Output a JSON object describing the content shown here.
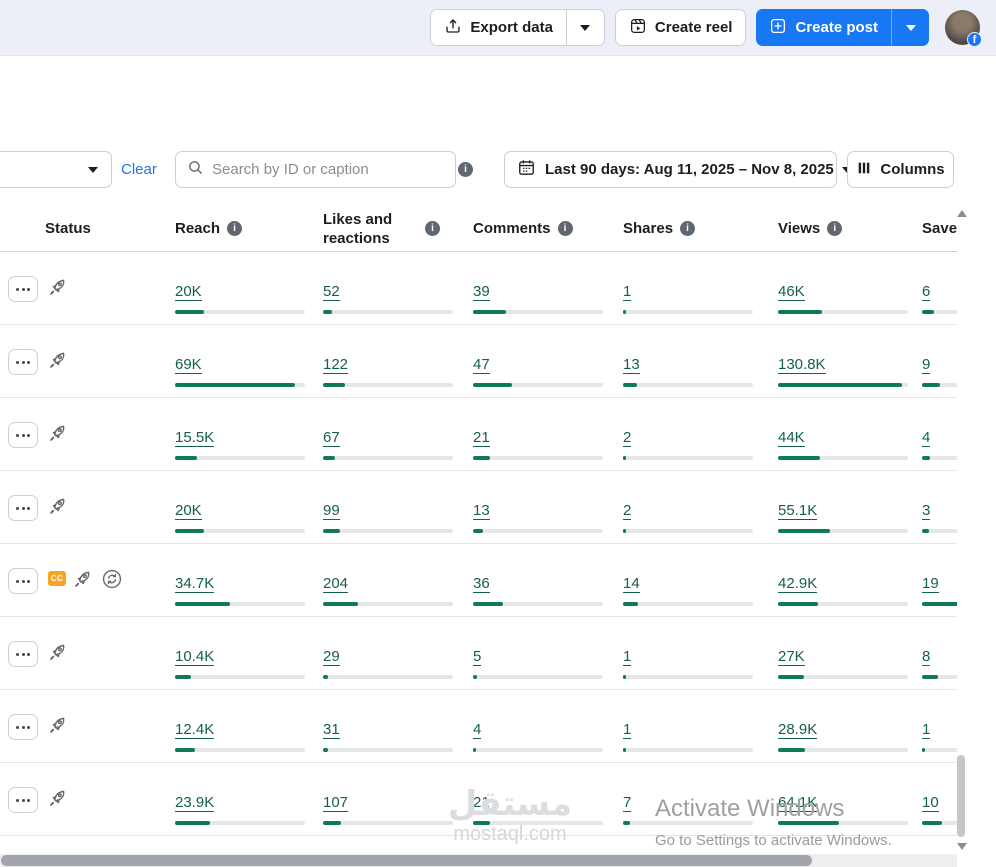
{
  "topbar": {
    "export": {
      "label": "Export data"
    },
    "create_reel": {
      "label": "Create reel"
    },
    "create_post": {
      "label": "Create post"
    }
  },
  "filters": {
    "clear": "Clear",
    "search_placeholder": "Search by ID or caption",
    "date_range": "Last 90 days: Aug 11, 2025 – Nov 8, 2025",
    "columns": "Columns"
  },
  "badges": {
    "cc": "CC"
  },
  "table": {
    "columns": [
      {
        "label": "Status",
        "info": false
      },
      {
        "label": "Reach",
        "info": true
      },
      {
        "label": "Likes and reactions",
        "info": true
      },
      {
        "label": "Comments",
        "info": true
      },
      {
        "label": "Shares",
        "info": true
      },
      {
        "label": "Views",
        "info": true
      },
      {
        "label": "Saves",
        "info": true
      }
    ],
    "rows": [
      {
        "status_icons": [
          "boost"
        ],
        "metrics": [
          {
            "value": "20K",
            "bar": 0.22
          },
          {
            "value": "52",
            "bar": 0.07
          },
          {
            "value": "39",
            "bar": 0.25
          },
          {
            "value": "1",
            "bar": 0.012
          },
          {
            "value": "46K",
            "bar": 0.34
          },
          {
            "value": "6",
            "bar": 0.09
          }
        ]
      },
      {
        "status_icons": [
          "boost"
        ],
        "metrics": [
          {
            "value": "69K",
            "bar": 0.92
          },
          {
            "value": "122",
            "bar": 0.17
          },
          {
            "value": "47",
            "bar": 0.3
          },
          {
            "value": "13",
            "bar": 0.11
          },
          {
            "value": "130.8K",
            "bar": 0.95
          },
          {
            "value": "9",
            "bar": 0.14
          }
        ]
      },
      {
        "status_icons": [
          "boost"
        ],
        "metrics": [
          {
            "value": "15.5K",
            "bar": 0.17
          },
          {
            "value": "67",
            "bar": 0.09
          },
          {
            "value": "21",
            "bar": 0.13
          },
          {
            "value": "2",
            "bar": 0.016
          },
          {
            "value": "44K",
            "bar": 0.32
          },
          {
            "value": "4",
            "bar": 0.06
          }
        ]
      },
      {
        "status_icons": [
          "boost"
        ],
        "metrics": [
          {
            "value": "20K",
            "bar": 0.22
          },
          {
            "value": "99",
            "bar": 0.13
          },
          {
            "value": "13",
            "bar": 0.08
          },
          {
            "value": "2",
            "bar": 0.016
          },
          {
            "value": "55.1K",
            "bar": 0.4
          },
          {
            "value": "3",
            "bar": 0.05
          }
        ]
      },
      {
        "status_icons": [
          "cc",
          "boost",
          "recycle"
        ],
        "metrics": [
          {
            "value": "34.7K",
            "bar": 0.42
          },
          {
            "value": "204",
            "bar": 0.27
          },
          {
            "value": "36",
            "bar": 0.23
          },
          {
            "value": "14",
            "bar": 0.115
          },
          {
            "value": "42.9K",
            "bar": 0.31
          },
          {
            "value": "19",
            "bar": 0.29
          }
        ]
      },
      {
        "status_icons": [
          "boost"
        ],
        "metrics": [
          {
            "value": "10.4K",
            "bar": 0.12
          },
          {
            "value": "29",
            "bar": 0.04
          },
          {
            "value": "5",
            "bar": 0.03
          },
          {
            "value": "1",
            "bar": 0.012
          },
          {
            "value": "27K",
            "bar": 0.2
          },
          {
            "value": "8",
            "bar": 0.12
          }
        ]
      },
      {
        "status_icons": [
          "boost"
        ],
        "metrics": [
          {
            "value": "12.4K",
            "bar": 0.15
          },
          {
            "value": "31",
            "bar": 0.04
          },
          {
            "value": "4",
            "bar": 0.025
          },
          {
            "value": "1",
            "bar": 0.012
          },
          {
            "value": "28.9K",
            "bar": 0.21
          },
          {
            "value": "1",
            "bar": 0.015
          }
        ]
      },
      {
        "status_icons": [
          "boost"
        ],
        "metrics": [
          {
            "value": "23.9K",
            "bar": 0.27
          },
          {
            "value": "107",
            "bar": 0.14
          },
          {
            "value": "21",
            "bar": 0.13
          },
          {
            "value": "7",
            "bar": 0.055
          },
          {
            "value": "64.1K",
            "bar": 0.47
          },
          {
            "value": "10",
            "bar": 0.15
          }
        ]
      }
    ]
  },
  "watermark": {
    "title": "مستقل",
    "domain": "mostaql.com"
  },
  "activation": {
    "line1": "Activate Windows",
    "line2": "Go to Settings to activate Windows."
  },
  "colors": {
    "accent_blue": "#1877f2",
    "metric_text_green": "#155f4d",
    "bar_green": "#107a55",
    "bar_track": "#e4e6eb",
    "cc_badge": "#f5a623"
  }
}
